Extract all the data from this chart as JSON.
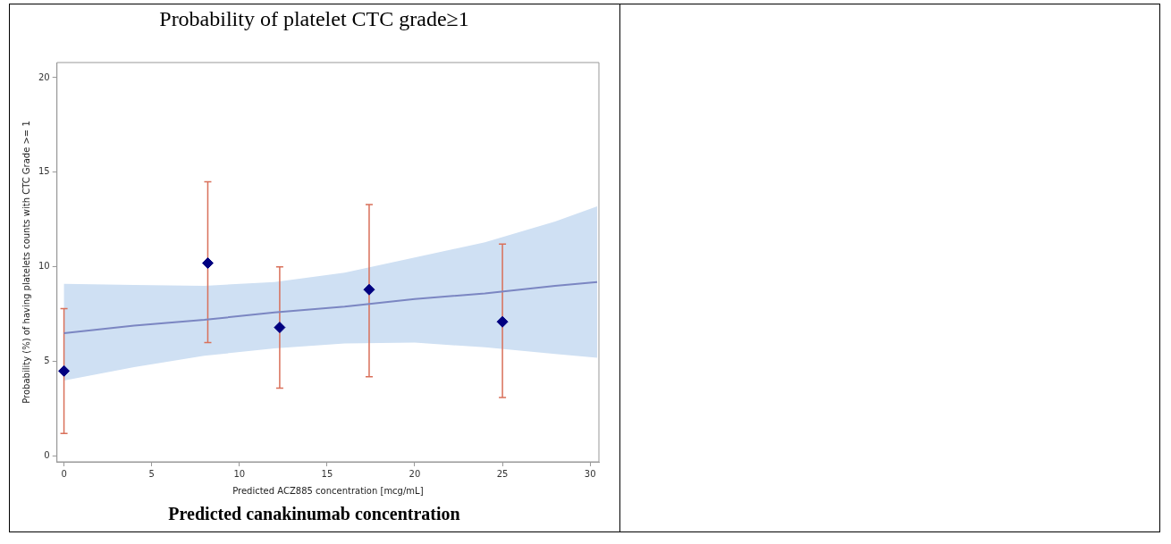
{
  "chart_data": {
    "type": "scatter",
    "title": "Probability of platelet CTC grade≥1",
    "xlabel": "Predicted ACZ885 concentration [mcg/mL]",
    "ylabel": "Probability (%) of having platelets counts with CTC Grade >= 1",
    "annotations": [
      "Predicted canakinumab concentration"
    ],
    "xlim": [
      -0.4,
      30.5
    ],
    "xticks": [
      0,
      5,
      10,
      15,
      20,
      25,
      30
    ],
    "ylim": [
      -0.3,
      20.8
    ],
    "yticks": [
      0,
      5,
      10,
      15,
      20
    ],
    "series": [
      {
        "type": "line",
        "color": "#7b86c2",
        "x": [
          0,
          4,
          8,
          12,
          16,
          20,
          24,
          28,
          30.4
        ],
        "values": [
          6.5,
          6.9,
          7.2,
          7.6,
          7.9,
          8.3,
          8.6,
          9.0,
          9.2
        ],
        "lower": [
          4.0,
          4.7,
          5.3,
          5.7,
          5.95,
          6.0,
          5.75,
          5.4,
          5.2
        ],
        "upper": [
          9.1,
          9.05,
          9.0,
          9.2,
          9.7,
          10.5,
          11.3,
          12.4,
          13.2
        ]
      },
      {
        "type": "scatter",
        "color": "#000080",
        "marker": "diamond",
        "x": [
          0,
          8.2,
          12.3,
          17.4,
          25
        ],
        "values": [
          4.5,
          10.2,
          6.8,
          8.8,
          7.1
        ],
        "errors": [
          [
            1.2,
            7.8
          ],
          [
            6.0,
            14.5
          ],
          [
            3.6,
            10.0
          ],
          [
            4.2,
            13.3
          ],
          [
            3.1,
            11.2
          ]
        ]
      }
    ]
  }
}
